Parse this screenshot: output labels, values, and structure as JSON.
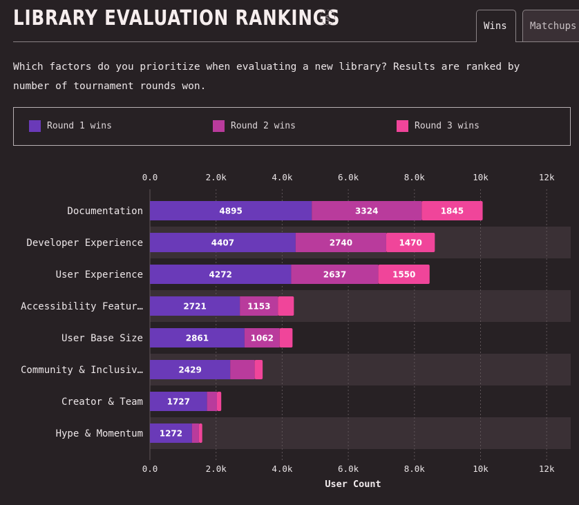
{
  "header": {
    "title": "LIBRARY EVALUATION RANKINGS",
    "icon": "dollar-icon",
    "tabs": [
      {
        "label": "Wins",
        "active": true
      },
      {
        "label": "Matchups",
        "active": false
      }
    ]
  },
  "description": "Which factors do you prioritize when evaluating a new library? Results are ranked by number of tournament rounds won.",
  "colors": {
    "background": "#272124",
    "band": "#3a3035",
    "round1": "#6a3ab8",
    "round2": "#b93b9c",
    "round3": "#f0459a"
  },
  "chart_data": {
    "type": "bar",
    "orientation": "horizontal",
    "stacked": true,
    "categories": [
      "Documentation",
      "Developer Experience",
      "User Experience",
      "Accessibility Featur…",
      "User Base Size",
      "Community & Inclusiv…",
      "Creator & Team",
      "Hype & Momentum"
    ],
    "series": [
      {
        "name": "Round 1 wins",
        "color": "#6a3ab8",
        "values": [
          4895,
          4407,
          4272,
          2721,
          2861,
          2429,
          1727,
          1272
        ]
      },
      {
        "name": "Round 2 wins",
        "color": "#b93b9c",
        "values": [
          3324,
          2740,
          2637,
          1153,
          1062,
          740,
          300,
          210
        ]
      },
      {
        "name": "Round 3 wins",
        "color": "#f0459a",
        "values": [
          1845,
          1470,
          1550,
          480,
          390,
          240,
          130,
          100
        ]
      }
    ],
    "value_labels_shown": [
      [
        true,
        true,
        true,
        true,
        true,
        true,
        true,
        true
      ],
      [
        true,
        true,
        true,
        true,
        true,
        false,
        false,
        false
      ],
      [
        true,
        true,
        true,
        false,
        false,
        false,
        false,
        false
      ]
    ],
    "xlabel": "User Count",
    "xticks": [
      "0.0",
      "2.0k",
      "4.0k",
      "6.0k",
      "8.0k",
      "10k",
      "12k"
    ],
    "xtick_values": [
      0,
      2000,
      4000,
      6000,
      8000,
      10000,
      12000
    ],
    "xlim": [
      0,
      12600
    ],
    "grid": true,
    "legend_position": "top"
  }
}
